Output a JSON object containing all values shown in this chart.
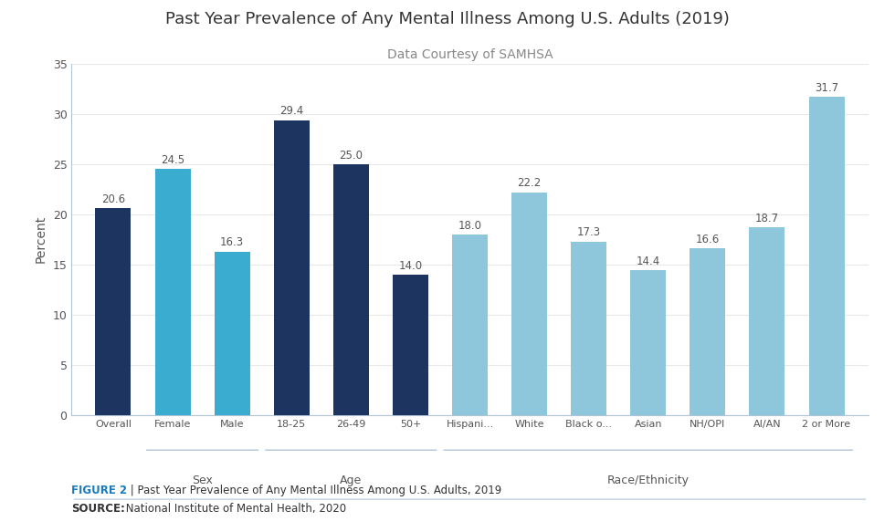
{
  "title": "Past Year Prevalence of Any Mental Illness Among U.S. Adults (2019)",
  "subtitle": "Data Courtesy of SAMHSA",
  "ylabel": "Percent",
  "ylim": [
    0,
    35
  ],
  "yticks": [
    0,
    5,
    10,
    15,
    20,
    25,
    30,
    35
  ],
  "categories": [
    "Overall",
    "Female",
    "Male",
    "18-25",
    "26-49",
    "50+",
    "Hispani...",
    "White",
    "Black o...",
    "Asian",
    "NH/OPI",
    "AI/AN",
    "2 or More"
  ],
  "values": [
    20.6,
    24.5,
    16.3,
    29.4,
    25.0,
    14.0,
    18.0,
    22.2,
    17.3,
    14.4,
    16.6,
    18.7,
    31.7
  ],
  "colors": [
    "#1d3461",
    "#3aaccf",
    "#3aaccf",
    "#1d3461",
    "#1d3461",
    "#1d3461",
    "#8ec6db",
    "#8ec6db",
    "#8ec6db",
    "#8ec6db",
    "#8ec6db",
    "#8ec6db",
    "#8ec6db"
  ],
  "groups": [
    {
      "label": "Sex",
      "start": 1,
      "end": 2
    },
    {
      "label": "Age",
      "start": 3,
      "end": 5
    },
    {
      "label": "Race/Ethnicity",
      "start": 6,
      "end": 12
    }
  ],
  "figure2_label": "FIGURE 2",
  "figure2_rest": " | Past Year Prevalence of Any Mental Illness Among U.S. Adults, 2019",
  "source_bold": "SOURCE:",
  "source_rest": " National Institute of Mental Health, 2020",
  "bg_color": "#ffffff",
  "bar_value_fontsize": 8.5,
  "axis_label_fontsize": 10,
  "title_fontsize": 13,
  "subtitle_fontsize": 10,
  "group_line_color": "#b0c4d4",
  "spine_color": "#b0c4d4",
  "grid_color": "#e8e8e8",
  "tick_label_color": "#555555",
  "group_label_color": "#555555",
  "value_label_color": "#555555"
}
